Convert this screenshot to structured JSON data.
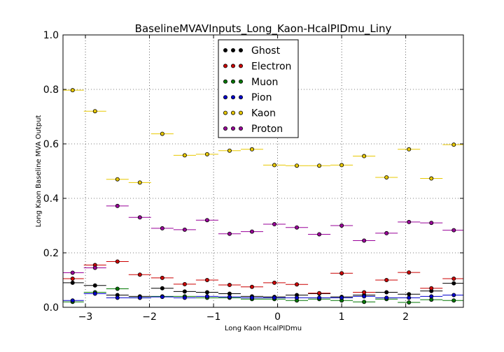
{
  "chart_data": {
    "type": "scatter",
    "title": "BaselineMVAVInputs_Long_Kaon-HcalPIDmu_Liny",
    "xlabel": "Long Kaon HcalPIDmu",
    "ylabel": "Long Kaon Baseline MVA Output",
    "xlim": [
      -3.35,
      2.9
    ],
    "ylim": [
      0.0,
      1.0
    ],
    "x_ticks": [
      -3,
      -2,
      -1,
      0,
      1,
      2
    ],
    "x_tick_labels": [
      "−3",
      "−2",
      "−1",
      "0",
      "1",
      "2"
    ],
    "y_ticks": [
      0.0,
      0.2,
      0.4,
      0.6,
      0.8,
      1.0
    ],
    "y_tick_labels": [
      "0.0",
      "0.2",
      "0.4",
      "0.6",
      "0.8",
      "1.0"
    ],
    "grid": true,
    "legend_position": "top-center",
    "x": [
      -3.2,
      -2.85,
      -2.5,
      -2.15,
      -1.8,
      -1.45,
      -1.1,
      -0.75,
      -0.4,
      -0.05,
      0.3,
      0.65,
      1.0,
      1.35,
      1.7,
      2.05,
      2.4,
      2.75
    ],
    "x_halfwidth": 0.175,
    "series": [
      {
        "name": "Ghost",
        "color": "#000000",
        "values": [
          0.09,
          0.08,
          0.045,
          0.04,
          0.07,
          0.058,
          0.055,
          0.05,
          0.04,
          0.038,
          0.045,
          0.05,
          0.038,
          0.045,
          0.055,
          0.048,
          0.06,
          0.088
        ]
      },
      {
        "name": "Electron",
        "color": "#cc0000",
        "values": [
          0.105,
          0.155,
          0.168,
          0.12,
          0.108,
          0.085,
          0.1,
          0.082,
          0.075,
          0.09,
          0.084,
          0.052,
          0.125,
          0.055,
          0.1,
          0.128,
          0.07,
          0.105
        ]
      },
      {
        "name": "Muon",
        "color": "#007700",
        "values": [
          0.02,
          0.055,
          0.068,
          0.035,
          0.04,
          0.04,
          0.035,
          0.035,
          0.03,
          0.03,
          0.025,
          0.03,
          0.025,
          0.02,
          0.03,
          0.018,
          0.028,
          0.025
        ]
      },
      {
        "name": "Pion",
        "color": "#0000cc",
        "values": [
          0.025,
          0.05,
          0.035,
          0.035,
          0.038,
          0.035,
          0.04,
          0.038,
          0.035,
          0.035,
          0.035,
          0.035,
          0.035,
          0.04,
          0.035,
          0.035,
          0.04,
          0.045
        ]
      },
      {
        "name": "Kaon",
        "color": "#e8c800",
        "values": [
          0.797,
          0.72,
          0.47,
          0.458,
          0.637,
          0.558,
          0.562,
          0.575,
          0.58,
          0.522,
          0.52,
          0.52,
          0.522,
          0.555,
          0.477,
          0.58,
          0.473,
          0.597
        ]
      },
      {
        "name": "Proton",
        "color": "#990099",
        "values": [
          0.127,
          0.145,
          0.372,
          0.33,
          0.29,
          0.285,
          0.32,
          0.27,
          0.278,
          0.305,
          0.293,
          0.268,
          0.3,
          0.245,
          0.272,
          0.313,
          0.31,
          0.283
        ]
      }
    ]
  }
}
